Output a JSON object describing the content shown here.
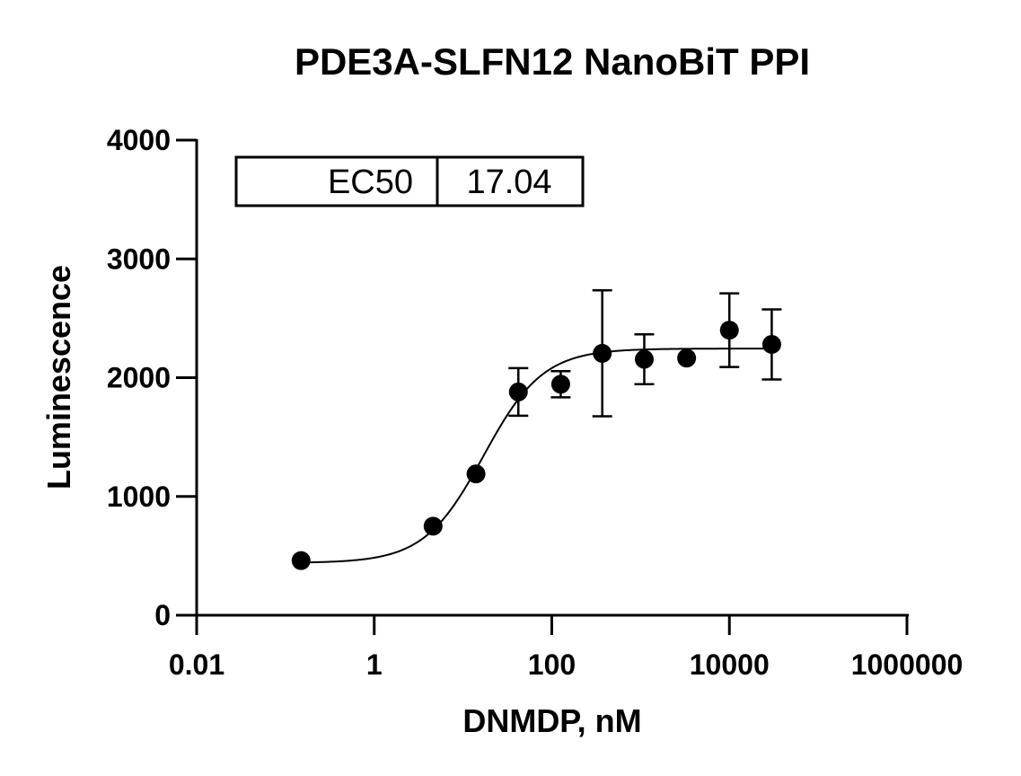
{
  "chart_data": {
    "type": "scatter",
    "title": "PDE3A-SLFN12 NanoBiT PPI",
    "xlabel": "DNMDP, nM",
    "ylabel": "Luminescence",
    "xscale": "log",
    "xlim": [
      0.01,
      1000000
    ],
    "ylim": [
      0,
      4000
    ],
    "xticks": [
      0.01,
      1,
      100,
      10000,
      1000000
    ],
    "xtick_labels": [
      "0.01",
      "1",
      "100",
      "10000",
      "1000000"
    ],
    "yticks": [
      0,
      1000,
      2000,
      3000,
      4000
    ],
    "ytick_labels": [
      "0",
      "1000",
      "2000",
      "3000",
      "4000"
    ],
    "series": [
      {
        "name": "DNMDP",
        "points": [
          {
            "x": 0.15,
            "y": 460
          },
          {
            "x": 4.6,
            "y": 750
          },
          {
            "x": 14,
            "y": 1190
          },
          {
            "x": 42,
            "y": 1880,
            "err": 200
          },
          {
            "x": 126,
            "y": 1945,
            "err": 110
          },
          {
            "x": 370,
            "y": 2205,
            "err": 530
          },
          {
            "x": 1100,
            "y": 2155,
            "err": 210
          },
          {
            "x": 3300,
            "y": 2165
          },
          {
            "x": 10000,
            "y": 2400,
            "err": 310
          },
          {
            "x": 30000,
            "y": 2280,
            "err": 295
          }
        ]
      }
    ],
    "fit": {
      "model": "sigmoidal dose-response",
      "bottom": 440,
      "top": 2245,
      "ec50": 17.04,
      "hill": 1.3,
      "x_range": [
        0.15,
        30000
      ]
    },
    "table": {
      "label": "EC50",
      "value": "17.04"
    }
  }
}
